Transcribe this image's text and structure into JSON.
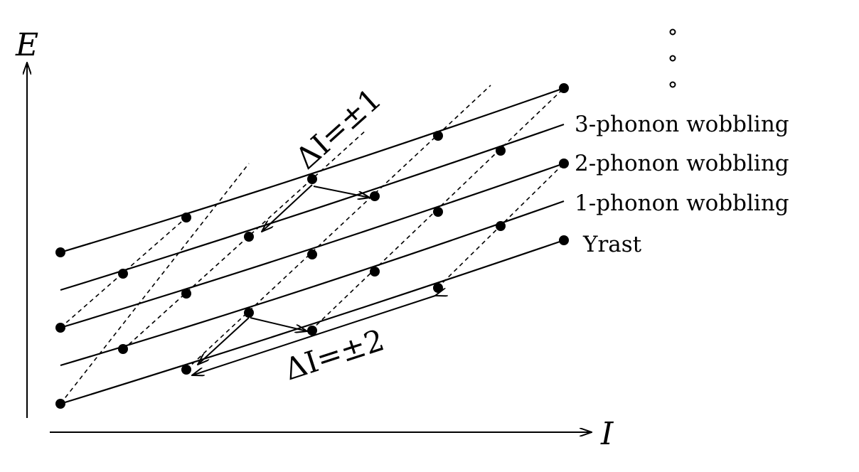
{
  "axes": {
    "x_label": "I",
    "y_label": "E"
  },
  "bands": [
    {
      "label": "Yrast"
    },
    {
      "label": "1-phonon wobbling"
    },
    {
      "label": "2-phonon wobbling"
    },
    {
      "label": "3-phonon wobbling"
    }
  ],
  "transitions": {
    "delta_one": "ΔI=±1",
    "delta_two": "ΔI=±2"
  }
}
